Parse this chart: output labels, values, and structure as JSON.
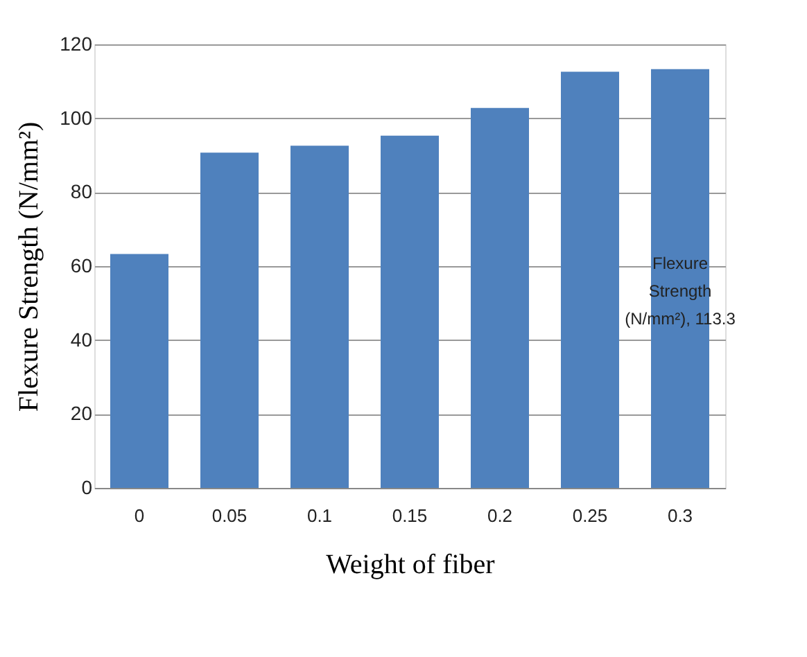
{
  "chart_data": {
    "type": "bar",
    "xlabel": "Weight of fiber",
    "ylabel": "Flexure Strength (N/mm²)",
    "categories": [
      "0",
      "0.05",
      "0.1",
      "0.15",
      "0.2",
      "0.25",
      "0.3"
    ],
    "values": [
      63.3,
      90.7,
      92.6,
      95.3,
      102.8,
      112.6,
      113.3
    ],
    "color": "#4f81bd",
    "value_labels": [
      null,
      null,
      null,
      null,
      null,
      null,
      "Flexure Strength (N/mm²), 113.3"
    ],
    "ylim": [
      0,
      120
    ],
    "yticks": [
      0,
      20,
      40,
      60,
      80,
      100,
      120
    ],
    "grid": "y"
  }
}
